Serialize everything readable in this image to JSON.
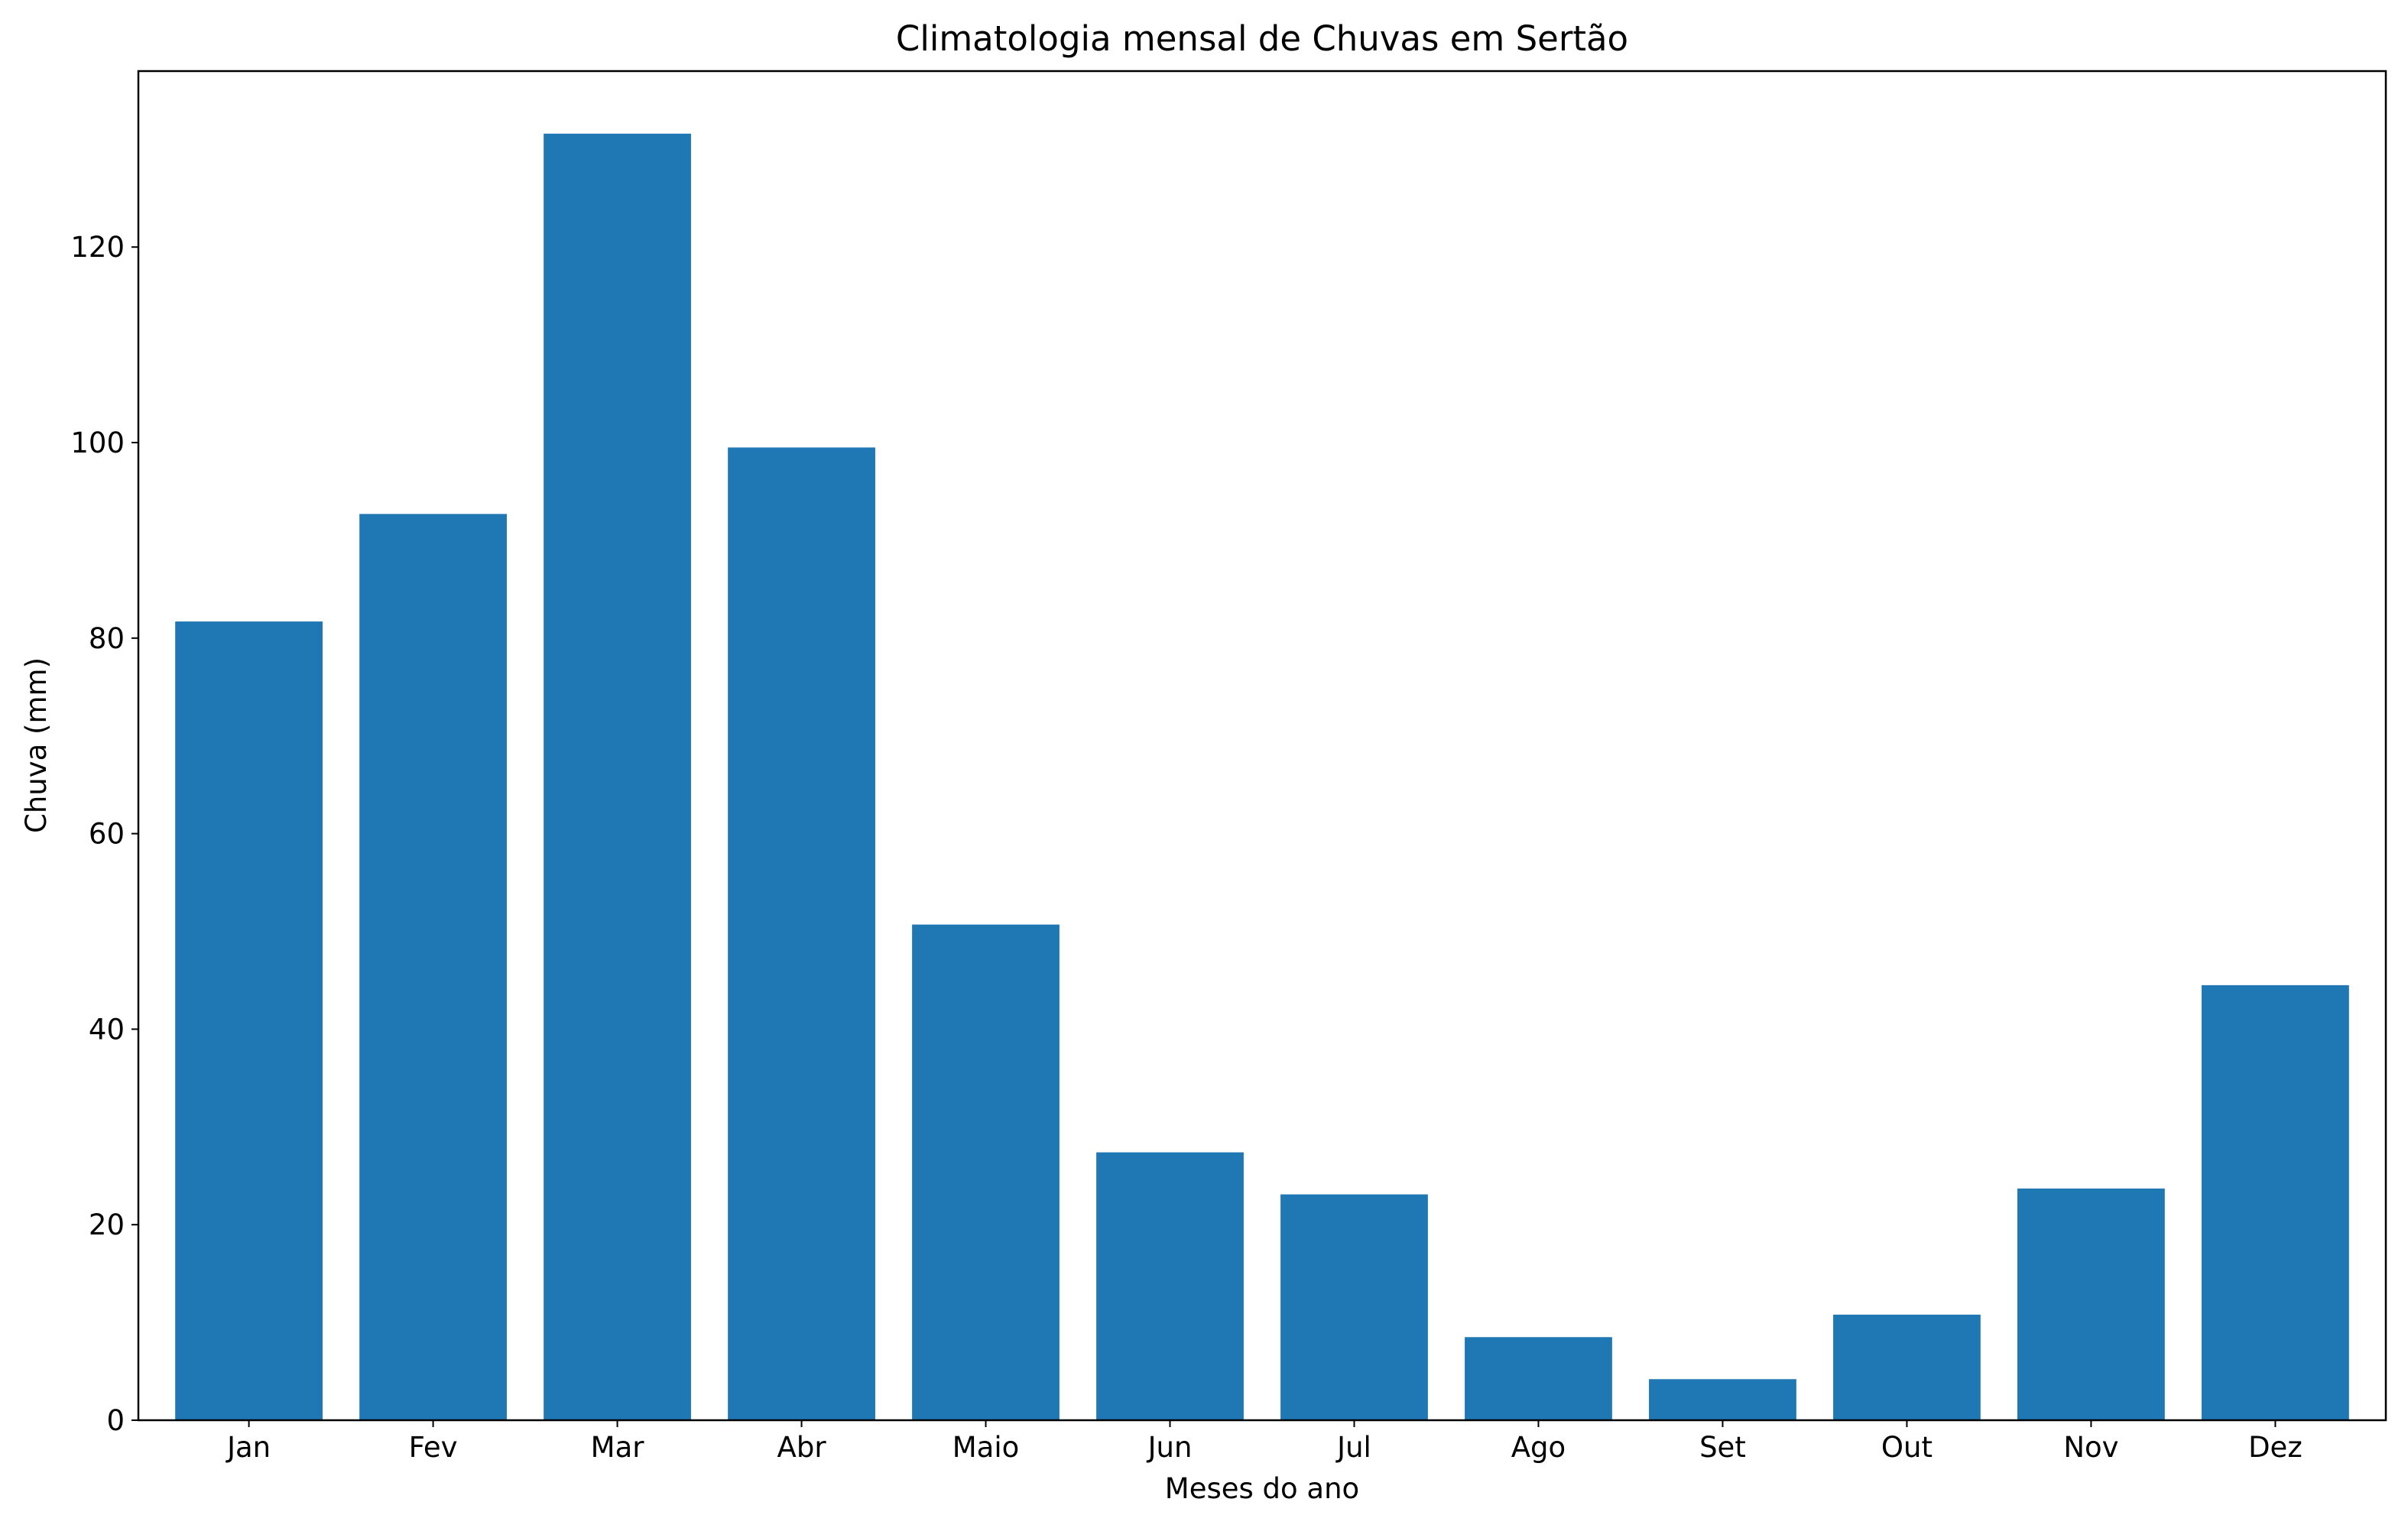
{
  "chart_data": {
    "type": "bar",
    "title": "Climatologia mensal de Chuvas em Sertão",
    "xlabel": "Meses do ano",
    "ylabel": "Chuva (mm)",
    "categories": [
      "Jan",
      "Fev",
      "Mar",
      "Abr",
      "Maio",
      "Jun",
      "Jul",
      "Ago",
      "Set",
      "Out",
      "Nov",
      "Dez"
    ],
    "values": [
      81.7,
      92.7,
      131.6,
      99.5,
      50.7,
      27.4,
      23.1,
      8.5,
      4.2,
      10.8,
      23.7,
      44.5
    ],
    "ylim": [
      0,
      138
    ],
    "yticks": [
      0,
      20,
      40,
      60,
      80,
      100,
      120
    ],
    "color": "#1f77b4",
    "grid": false
  }
}
